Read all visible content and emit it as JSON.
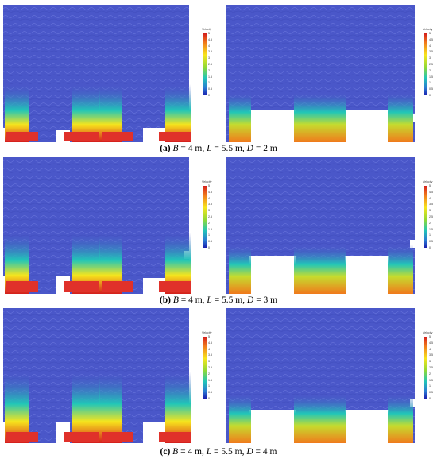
{
  "figure": {
    "colorbar": {
      "title": "Velocity",
      "ticks": [
        "5",
        "4.5",
        "4",
        "3.5",
        "3",
        "2.5",
        "2",
        "1.5",
        "1",
        "0.5",
        "0"
      ]
    },
    "captions": [
      {
        "tag": "(a)",
        "b_var": "B",
        "b_val": "= 4 m,",
        "l_var": "L",
        "l_val": "= 5.5 m,",
        "d_var": "D",
        "d_val": "= 2 m"
      },
      {
        "tag": "(b)",
        "b_var": "B",
        "b_val": "= 4 m,",
        "l_var": "L",
        "l_val": "= 5.5 m,",
        "d_var": "D",
        "d_val": "= 3 m"
      },
      {
        "tag": "(c)",
        "b_var": "B",
        "b_val": "= 4 m,",
        "l_var": "L",
        "l_val": "= 5.5 m,",
        "d_var": "D",
        "d_val": "= 4 m"
      }
    ],
    "colors": {
      "background_flow": "#4a57c9",
      "low": "#1b1fb0",
      "mid": "#21c6b8",
      "high": "#d41d1d"
    }
  }
}
